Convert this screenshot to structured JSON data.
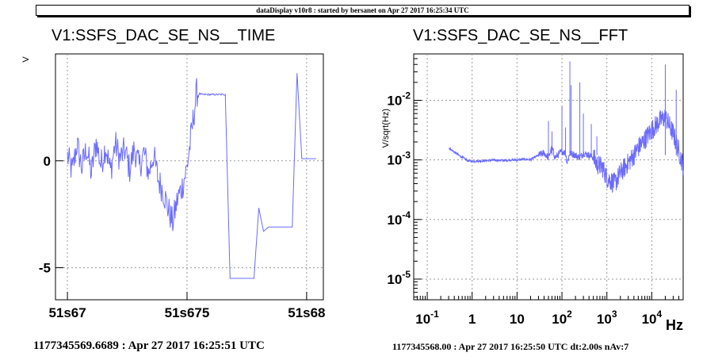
{
  "banner": "dataDisplay v10r8 : started by bersanet on Apr 27 2017 16:25:34 UTC",
  "colors": {
    "trace": "#6b6bff",
    "grid": "#9a9a9a",
    "axis": "#000000"
  },
  "chart_data": [
    {
      "type": "line",
      "title": "V1:SSFS_DAC_SE_NS__TIME",
      "ylabel": "V",
      "xlabel": "",
      "grid": true,
      "x_ticks": [
        "51s67",
        "51s675",
        "51s68"
      ],
      "x_tick_values": [
        51.67,
        51.675,
        51.68
      ],
      "xlim": [
        51.6695,
        51.6807
      ],
      "y_ticks": [
        "0",
        "-5"
      ],
      "y_tick_values": [
        0,
        -5
      ],
      "ylim": [
        -6.5,
        5.0
      ],
      "footer": "1177345569.6689 : Apr 27 2017 16:25:51 UTC",
      "x": [
        51.67,
        51.6702,
        51.6704,
        51.6706,
        51.6708,
        51.671,
        51.6712,
        51.6714,
        51.6716,
        51.6718,
        51.672,
        51.6722,
        51.6724,
        51.6726,
        51.6728,
        51.673,
        51.6732,
        51.6734,
        51.6736,
        51.6738,
        51.674,
        51.6742,
        51.6744,
        51.6746,
        51.6748,
        51.675,
        51.6752,
        51.6754,
        51.6756,
        51.6758,
        51.676,
        51.6762,
        51.6764,
        51.6766,
        51.6768,
        51.677,
        51.6772,
        51.6774,
        51.6776,
        51.6778,
        51.678,
        51.6782,
        51.6784,
        51.6786,
        51.6788,
        51.679,
        51.6792,
        51.6794,
        51.6796,
        51.6798,
        51.68,
        51.6804
      ],
      "y": [
        0.2,
        -0.5,
        0.8,
        -0.3,
        0.6,
        -0.6,
        0.9,
        -0.2,
        0.7,
        -0.5,
        0.8,
        0.1,
        0.5,
        -0.4,
        0.6,
        -0.3,
        0.4,
        -0.6,
        0.3,
        -0.9,
        -1.4,
        -2.2,
        -2.9,
        -1.8,
        -1.2,
        -0.3,
        1.4,
        3.2,
        3.1,
        3.1,
        3.1,
        3.1,
        3.1,
        3.1,
        -5.5,
        -5.5,
        -5.5,
        -5.5,
        -5.5,
        -5.5,
        -2.2,
        -3.3,
        -3.1,
        -3.1,
        -3.1,
        -3.1,
        -3.1,
        -3.1,
        4.1,
        0.1,
        0.1,
        0.1
      ]
    },
    {
      "type": "line",
      "title": "V1:SSFS_DAC_SE_NS__FFT",
      "ylabel": "V/sqrt(Hz)",
      "xlabel": "Hz",
      "xscale": "log",
      "yscale": "log",
      "grid": true,
      "x_ticks": [
        "10-1",
        "1",
        "10",
        "102",
        "103",
        "104"
      ],
      "x_tick_values": [
        0.1,
        1,
        10,
        100,
        1000,
        10000
      ],
      "xlim": [
        0.05,
        50000
      ],
      "y_ticks": [
        "10-2",
        "10-3",
        "10-4",
        "10-5"
      ],
      "y_tick_values": [
        0.01,
        0.001,
        0.0001,
        1e-05
      ],
      "ylim": [
        4.5e-06,
        0.06
      ],
      "footer": "1177345568.00 : Apr 27 2017 16:25:50 UTC dt:2.00s nAv:7",
      "x": [
        0.3,
        0.5,
        0.8,
        1,
        2,
        3,
        5,
        8,
        10,
        15,
        20,
        30,
        40,
        50,
        60,
        70,
        80,
        100,
        120,
        130,
        150,
        200,
        250,
        300,
        400,
        500,
        600,
        800,
        1000,
        1500,
        2000,
        3000,
        4000,
        5000,
        7000,
        10000,
        15000,
        20000,
        30000,
        40000,
        50000
      ],
      "y": [
        0.0016,
        0.0012,
        0.00097,
        0.00095,
        0.00097,
        0.00099,
        0.00098,
        0.001,
        0.001,
        0.00102,
        0.00101,
        0.0012,
        0.0013,
        0.0011,
        0.0016,
        0.0011,
        0.0012,
        0.0014,
        0.0013,
        0.0009,
        0.0013,
        0.0012,
        0.0011,
        0.0013,
        0.0012,
        0.0011,
        0.00085,
        0.00075,
        0.0005,
        0.0004,
        0.0006,
        0.0009,
        0.0012,
        0.0016,
        0.0022,
        0.0032,
        0.0045,
        0.0052,
        0.0028,
        0.0014,
        0.0008
      ]
    }
  ]
}
